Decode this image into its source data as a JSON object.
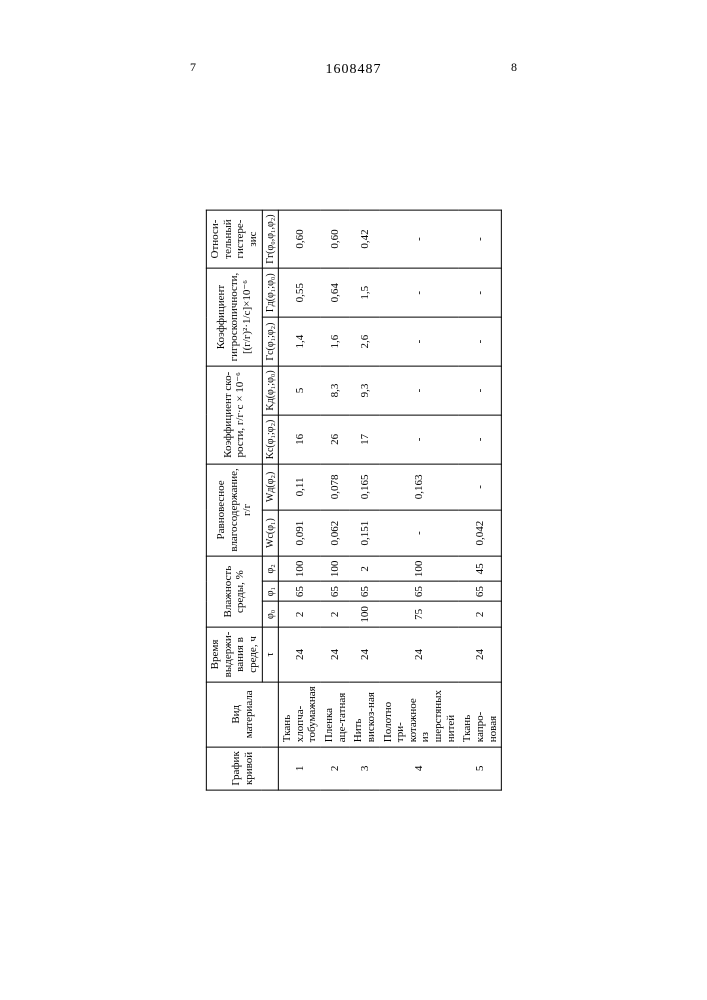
{
  "doc_id": "1608487",
  "page_left": "7",
  "page_right": "8",
  "headers": {
    "col1": "График кривой",
    "col2": "Вид материала",
    "col3": "Время выдержи-вания в среде, ч",
    "col3_sub": "τ",
    "col4": "Влажность среды, %",
    "col4_subs": [
      "φ₀",
      "φ₁",
      "φ₂"
    ],
    "col5": "Равновесное влагосодержание, г/г",
    "col5_subs": [
      "Wc(φ₁)",
      "Wд(φ₂)"
    ],
    "col6": "Коэффициент ско-рости, г/г·с × 10⁻⁶",
    "col6_subs": [
      "Kc(φ₁;φ₂)",
      "Kд(φ₁;φ₀)"
    ],
    "col7": "Коэффициент гигроскопичности, [(г/г)²·1/с]×10⁻⁶",
    "col7_subs": [
      "Γс(φ₁;φ₂)",
      "Γд(φ₁;φ₀)"
    ],
    "col8": "Относи-тельный гистере-зис",
    "col8_sub": "Γг(φ₀,φ₁,φ₂)"
  },
  "rows": [
    {
      "no": "1",
      "material": "Ткань хлопча-тобумажная",
      "tau": "24",
      "phi0": "2",
      "phi1": "65",
      "phi2": "100",
      "wc": "0,091",
      "wd": "0,11",
      "kc": "16",
      "kd": "5",
      "gc": "1,4",
      "gd": "0,55",
      "gg": "0,60"
    },
    {
      "no": "2",
      "material": "Пленка аце-татная",
      "tau": "24",
      "phi0": "2",
      "phi1": "65",
      "phi2": "100",
      "wc": "0,062",
      "wd": "0,078",
      "kc": "26",
      "kd": "8,3",
      "gc": "1,6",
      "gd": "0,64",
      "gg": "0,60"
    },
    {
      "no": "3",
      "material": "Нить вискоз-ная",
      "tau": "24",
      "phi0": "100",
      "phi1": "65",
      "phi2": "2",
      "wc": "0,151",
      "wd": "0,165",
      "kc": "17",
      "kd": "9,3",
      "gc": "2,6",
      "gd": "1,5",
      "gg": "0,42"
    },
    {
      "no": "4",
      "material": "Полотно три-котажное из шерстяных нитей",
      "tau": "24",
      "phi0": "75",
      "phi1": "65",
      "phi2": "100",
      "wc": "-",
      "wd": "0,163",
      "kc": "-",
      "kd": "-",
      "gc": "-",
      "gd": "-",
      "gg": "-"
    },
    {
      "no": "5",
      "material": "Ткань капро-новая",
      "tau": "24",
      "phi0": "2",
      "phi1": "65",
      "phi2": "45",
      "wc": "0,042",
      "wd": "-",
      "kc": "-",
      "kd": "-",
      "gc": "-",
      "gd": "-",
      "gg": "-"
    }
  ]
}
